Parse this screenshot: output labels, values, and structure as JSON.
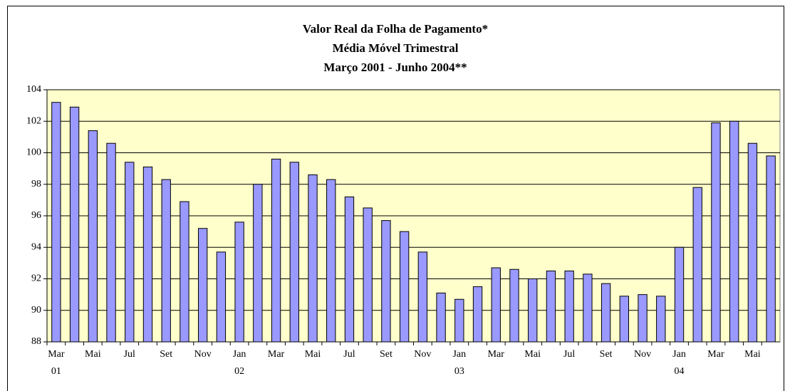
{
  "chart_data": {
    "type": "bar",
    "title": [
      "Valor Real da Folha de Pagamento*",
      "Média Móvel Trimestral",
      "Março 2001 - Junho 2004**"
    ],
    "categories": [
      "Mar",
      null,
      "Mai",
      null,
      "Jul",
      null,
      "Set",
      null,
      "Nov",
      null,
      "Jan",
      null,
      "Mar",
      null,
      "Mai",
      null,
      "Jul",
      null,
      "Set",
      null,
      "Nov",
      null,
      "Jan",
      null,
      "Mar",
      null,
      "Mai",
      null,
      "Jul",
      null,
      "Set",
      null,
      "Nov",
      null,
      "Jan",
      null,
      "Mar",
      null,
      "Mai",
      null
    ],
    "category_groups": [
      "01",
      null,
      null,
      null,
      null,
      null,
      null,
      null,
      null,
      null,
      "02",
      null,
      null,
      null,
      null,
      null,
      null,
      null,
      null,
      null,
      null,
      null,
      "03",
      null,
      null,
      null,
      null,
      null,
      null,
      null,
      null,
      null,
      null,
      null,
      "04",
      null,
      null,
      null,
      null,
      null
    ],
    "values": [
      103.2,
      102.9,
      101.4,
      100.6,
      99.4,
      99.1,
      98.3,
      96.9,
      95.2,
      93.7,
      95.6,
      98.0,
      99.6,
      99.4,
      98.6,
      98.3,
      97.2,
      96.5,
      95.7,
      95.0,
      93.7,
      91.1,
      90.7,
      91.5,
      92.7,
      92.6,
      92.0,
      92.5,
      92.5,
      92.3,
      91.7,
      90.9,
      91.0,
      90.9,
      94.0,
      97.8,
      101.9,
      102.0,
      100.6,
      99.8
    ],
    "color": "#9999ff",
    "plot_background": "#ffffcc",
    "ylim": [
      88,
      104
    ],
    "yticks": [
      88,
      90,
      92,
      94,
      96,
      98,
      100,
      102,
      104
    ],
    "grid": true
  }
}
